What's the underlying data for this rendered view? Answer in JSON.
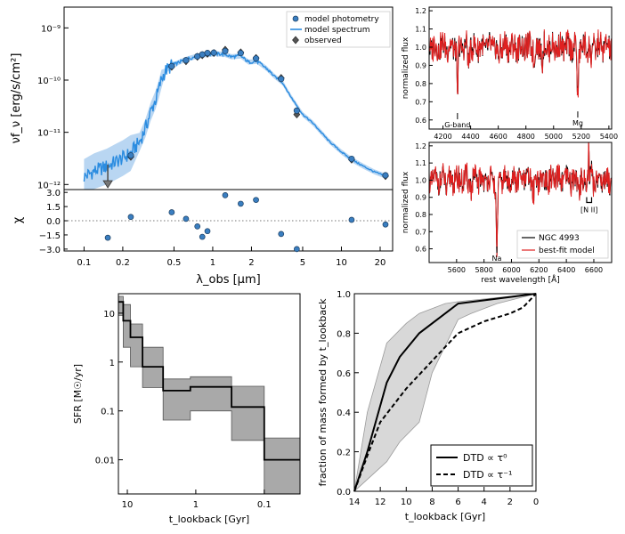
{
  "colors": {
    "photometry": "#3a7ec0",
    "spectrum": "#2b8ce0",
    "observed": "#555555",
    "ngc": "#000000",
    "bestfit": "#e02020",
    "band": "#bdbdbd",
    "step": "#000000"
  },
  "chart_data": [
    {
      "id": "sed",
      "type": "scatter",
      "xlabel": "λ_obs [μm]",
      "ylabel": "νf_ν [erg/s/cm²]",
      "ylabel2": "χ",
      "xlim": [
        0.07,
        25
      ],
      "ylim": [
        8e-13,
        2.5e-09
      ],
      "chi_lim": [
        -3.2,
        3.3
      ],
      "xticks": [
        {
          "v": 0.1,
          "l": "0.1"
        },
        {
          "v": 0.2,
          "l": "0.2"
        },
        {
          "v": 0.5,
          "l": "0.5"
        },
        {
          "v": 1,
          "l": "1"
        },
        {
          "v": 2,
          "l": "2"
        },
        {
          "v": 5,
          "l": "5"
        },
        {
          "v": 10,
          "l": "10"
        },
        {
          "v": 20,
          "l": "20"
        }
      ],
      "yticks": [
        {
          "v": 1e-12,
          "l": "10⁻¹²"
        },
        {
          "v": 1e-11,
          "l": "10⁻¹¹"
        },
        {
          "v": 1e-10,
          "l": "10⁻¹⁰"
        },
        {
          "v": 1e-09,
          "l": "10⁻⁹"
        }
      ],
      "chi_ticks": [
        {
          "v": 3.0,
          "l": "3.0"
        },
        {
          "v": 1.5,
          "l": "1.5"
        },
        {
          "v": 0.0,
          "l": "0.0"
        },
        {
          "v": -1.5,
          "l": "−1.5"
        },
        {
          "v": -3.0,
          "l": "−3.0"
        }
      ],
      "legend": [
        "model photometry",
        "model spectrum",
        "observed"
      ],
      "upper_limit": {
        "x": 0.153,
        "y": 1.1e-12
      },
      "photometry": [
        {
          "x": 0.231,
          "y": 3.6e-12
        },
        {
          "x": 0.48,
          "y": 1.85e-10
        },
        {
          "x": 0.62,
          "y": 2.4e-10
        },
        {
          "x": 0.76,
          "y": 2.85e-10
        },
        {
          "x": 0.83,
          "y": 3.1e-10
        },
        {
          "x": 0.91,
          "y": 3.3e-10
        },
        {
          "x": 1.02,
          "y": 3.35e-10
        },
        {
          "x": 1.25,
          "y": 3.6e-10
        },
        {
          "x": 1.65,
          "y": 3.3e-10
        },
        {
          "x": 2.17,
          "y": 2.6e-10
        },
        {
          "x": 3.4,
          "y": 1.05e-10
        },
        {
          "x": 4.5,
          "y": 2.6e-11
        },
        {
          "x": 12,
          "y": 3.1e-12
        },
        {
          "x": 22,
          "y": 1.5e-12
        }
      ],
      "observed": [
        {
          "x": 0.231,
          "y": 3.4e-12
        },
        {
          "x": 0.48,
          "y": 1.8e-10
        },
        {
          "x": 0.62,
          "y": 2.3e-10
        },
        {
          "x": 0.76,
          "y": 2.8e-10
        },
        {
          "x": 0.83,
          "y": 3e-10
        },
        {
          "x": 0.91,
          "y": 3.2e-10
        },
        {
          "x": 1.02,
          "y": 3.3e-10
        },
        {
          "x": 1.25,
          "y": 3.8e-10
        },
        {
          "x": 1.65,
          "y": 3.4e-10
        },
        {
          "x": 2.17,
          "y": 2.65e-10
        },
        {
          "x": 3.4,
          "y": 1.1e-10
        },
        {
          "x": 4.5,
          "y": 2.2e-11
        },
        {
          "x": 12,
          "y": 3e-12
        },
        {
          "x": 22,
          "y": 1.45e-12
        }
      ],
      "spectrum": [
        {
          "x": 0.1,
          "y": 1.4e-12
        },
        {
          "x": 0.12,
          "y": 1.8e-12
        },
        {
          "x": 0.15,
          "y": 2.2e-12
        },
        {
          "x": 0.18,
          "y": 2.8e-12
        },
        {
          "x": 0.2,
          "y": 3.2e-12
        },
        {
          "x": 0.23,
          "y": 4e-12
        },
        {
          "x": 0.27,
          "y": 6.5e-12
        },
        {
          "x": 0.3,
          "y": 1.2e-11
        },
        {
          "x": 0.33,
          "y": 2.5e-11
        },
        {
          "x": 0.36,
          "y": 4.2e-11
        },
        {
          "x": 0.38,
          "y": 6.5e-11
        },
        {
          "x": 0.4,
          "y": 1.05e-10
        },
        {
          "x": 0.43,
          "y": 1.5e-10
        },
        {
          "x": 0.48,
          "y": 1.9e-10
        },
        {
          "x": 0.55,
          "y": 2.2e-10
        },
        {
          "x": 0.62,
          "y": 2.5e-10
        },
        {
          "x": 0.75,
          "y": 2.85e-10
        },
        {
          "x": 0.9,
          "y": 3.1e-10
        },
        {
          "x": 1.05,
          "y": 3.2e-10
        },
        {
          "x": 1.25,
          "y": 3.1e-10
        },
        {
          "x": 1.4,
          "y": 2.8e-10
        },
        {
          "x": 1.65,
          "y": 2.9e-10
        },
        {
          "x": 1.9,
          "y": 2.2e-10
        },
        {
          "x": 2.2,
          "y": 2.3e-10
        },
        {
          "x": 2.6,
          "y": 1.7e-10
        },
        {
          "x": 3.0,
          "y": 1.2e-10
        },
        {
          "x": 3.5,
          "y": 8.8e-11
        },
        {
          "x": 4.0,
          "y": 5e-11
        },
        {
          "x": 5,
          "y": 2.2e-11
        },
        {
          "x": 6,
          "y": 1.5e-11
        },
        {
          "x": 8,
          "y": 6.8e-12
        },
        {
          "x": 10,
          "y": 4.2e-12
        },
        {
          "x": 12,
          "y": 3e-12
        },
        {
          "x": 15,
          "y": 2.2e-12
        },
        {
          "x": 18,
          "y": 1.75e-12
        },
        {
          "x": 22,
          "y": 1.45e-12
        }
      ],
      "chi": [
        {
          "x": 0.153,
          "y": -1.8
        },
        {
          "x": 0.231,
          "y": 0.4
        },
        {
          "x": 0.48,
          "y": 0.9
        },
        {
          "x": 0.62,
          "y": 0.2
        },
        {
          "x": 0.76,
          "y": -0.6
        },
        {
          "x": 0.83,
          "y": -1.7
        },
        {
          "x": 0.91,
          "y": -1.1
        },
        {
          "x": 1.25,
          "y": 2.7
        },
        {
          "x": 1.65,
          "y": 1.8
        },
        {
          "x": 2.17,
          "y": 2.2
        },
        {
          "x": 3.4,
          "y": -1.4
        },
        {
          "x": 4.5,
          "y": -3.0
        },
        {
          "x": 12,
          "y": 0.1
        },
        {
          "x": 22,
          "y": -0.4
        }
      ]
    },
    {
      "id": "spec_top",
      "type": "line",
      "xlabel": "",
      "ylabel": "normalized flux",
      "xlim": [
        4100,
        5420
      ],
      "ylim": [
        0.55,
        1.22
      ],
      "xticks": [
        4200,
        4400,
        4600,
        4800,
        5000,
        5200,
        5400
      ],
      "yticks": [
        {
          "v": 0.6,
          "l": "0.6"
        },
        {
          "v": 0.7,
          "l": "0.7"
        },
        {
          "v": 0.8,
          "l": "0.8"
        },
        {
          "v": 0.9,
          "l": "0.9"
        },
        {
          "v": 1.0,
          "l": "1.0"
        },
        {
          "v": 1.1,
          "l": "1.1"
        },
        {
          "v": 1.2,
          "l": "1.2"
        }
      ],
      "annotations": [
        {
          "x": 4305,
          "label": "G-band"
        },
        {
          "x": 5175,
          "label": "Mg"
        }
      ],
      "features": [
        {
          "x": 4305,
          "depth": 0.3,
          "width": 6
        },
        {
          "x": 5175,
          "depth": 0.27,
          "width": 7
        },
        {
          "x": 4385,
          "depth": 0.1,
          "width": 6
        },
        {
          "x": 4600,
          "depth": 0.07,
          "width": 8
        },
        {
          "x": 4860,
          "depth": 0.1,
          "width": 6
        },
        {
          "x": 4920,
          "depth": 0.08,
          "width": 6
        },
        {
          "x": 5270,
          "depth": 0.08,
          "width": 6
        }
      ]
    },
    {
      "id": "spec_bot",
      "type": "line",
      "xlabel": "rest wavelength [Å]",
      "ylabel": "normalized flux",
      "xlim": [
        5400,
        6730
      ],
      "ylim": [
        0.52,
        1.22
      ],
      "xticks": [
        5600,
        5800,
        6000,
        6200,
        6400,
        6600
      ],
      "yticks": [
        {
          "v": 0.6,
          "l": "0.6"
        },
        {
          "v": 0.7,
          "l": "0.7"
        },
        {
          "v": 0.8,
          "l": "0.8"
        },
        {
          "v": 0.9,
          "l": "0.9"
        },
        {
          "v": 1.0,
          "l": "1.0"
        },
        {
          "v": 1.1,
          "l": "1.1"
        },
        {
          "v": 1.2,
          "l": "1.2"
        }
      ],
      "annotations": [
        {
          "x": 5893,
          "label": "Na"
        }
      ],
      "nii_label": "[N II]",
      "nii_x": [
        6548,
        6584
      ],
      "features": [
        {
          "x": 5893,
          "depth": 0.42,
          "width": 8
        },
        {
          "x": 5530,
          "depth": 0.06,
          "width": 8
        },
        {
          "x": 5710,
          "depth": 0.05,
          "width": 8
        },
        {
          "x": 6160,
          "depth": 0.06,
          "width": 8
        },
        {
          "x": 6495,
          "depth": 0.07,
          "width": 8
        }
      ],
      "emission": [
        {
          "x": 6563,
          "height": 0.18,
          "width": 4
        },
        {
          "x": 6584,
          "height": 0.06,
          "width": 4
        }
      ],
      "legend": [
        "NGC 4993",
        "best-fit model"
      ]
    },
    {
      "id": "sfr",
      "type": "area",
      "xlabel": "t_lookback [Gyr]",
      "ylabel": "SFR [M☉/yr]",
      "xlim": [
        13.5,
        0.03
      ],
      "ylim": [
        0.002,
        25
      ],
      "xticks": [
        {
          "v": 10,
          "l": "10"
        },
        {
          "v": 1,
          "l": "1"
        },
        {
          "v": 0.1,
          "l": "0.1"
        }
      ],
      "yticks": [
        {
          "v": 10,
          "l": "10"
        },
        {
          "v": 1,
          "l": "1"
        },
        {
          "v": 0.1,
          "l": "0.1"
        },
        {
          "v": 0.01,
          "l": "0.01"
        }
      ],
      "bins": [
        {
          "t1": 13.5,
          "t2": 11.5,
          "v": 17,
          "lo": 9,
          "hi": 22
        },
        {
          "t1": 11.5,
          "t2": 9,
          "v": 7,
          "lo": 2,
          "hi": 15
        },
        {
          "t1": 9,
          "t2": 6,
          "v": 3.2,
          "lo": 0.8,
          "hi": 6
        },
        {
          "t1": 6,
          "t2": 3,
          "v": 0.8,
          "lo": 0.3,
          "hi": 2
        },
        {
          "t1": 3,
          "t2": 1.2,
          "v": 0.26,
          "lo": 0.065,
          "hi": 0.45
        },
        {
          "t1": 1.2,
          "t2": 0.3,
          "v": 0.31,
          "lo": 0.1,
          "hi": 0.5
        },
        {
          "t1": 0.3,
          "t2": 0.1,
          "v": 0.12,
          "lo": 0.025,
          "hi": 0.32
        },
        {
          "t1": 0.1,
          "t2": 0.03,
          "v": 0.01,
          "lo": 0.002,
          "hi": 0.028
        }
      ]
    },
    {
      "id": "massfrac",
      "type": "line",
      "xlabel": "t_lookback [Gyr]",
      "ylabel": "fraction of mass formed by t_lookback",
      "xlim": [
        14,
        0
      ],
      "ylim": [
        0,
        1
      ],
      "xticks": [
        {
          "v": 14,
          "l": "14"
        },
        {
          "v": 12,
          "l": "12"
        },
        {
          "v": 10,
          "l": "10"
        },
        {
          "v": 8,
          "l": "8"
        },
        {
          "v": 6,
          "l": "6"
        },
        {
          "v": 4,
          "l": "4"
        },
        {
          "v": 2,
          "l": "2"
        },
        {
          "v": 0,
          "l": "0"
        }
      ],
      "yticks": [
        {
          "v": 0,
          "l": "0.0"
        },
        {
          "v": 0.2,
          "l": "0.2"
        },
        {
          "v": 0.4,
          "l": "0.4"
        },
        {
          "v": 0.6,
          "l": "0.6"
        },
        {
          "v": 0.8,
          "l": "0.8"
        },
        {
          "v": 1.0,
          "l": "1.0"
        }
      ],
      "band_upper": [
        {
          "x": 14,
          "y": 0
        },
        {
          "x": 13,
          "y": 0.4
        },
        {
          "x": 11.5,
          "y": 0.75
        },
        {
          "x": 10,
          "y": 0.85
        },
        {
          "x": 9,
          "y": 0.9
        },
        {
          "x": 7,
          "y": 0.95
        },
        {
          "x": 6,
          "y": 0.96
        },
        {
          "x": 0,
          "y": 1
        }
      ],
      "band_lower": [
        {
          "x": 0,
          "y": 1
        },
        {
          "x": 3,
          "y": 0.95
        },
        {
          "x": 5,
          "y": 0.9
        },
        {
          "x": 6,
          "y": 0.87
        },
        {
          "x": 8,
          "y": 0.6
        },
        {
          "x": 9,
          "y": 0.35
        },
        {
          "x": 10.5,
          "y": 0.25
        },
        {
          "x": 11.5,
          "y": 0.15
        },
        {
          "x": 14,
          "y": 0
        }
      ],
      "series": [
        {
          "name": "DTD ∝ τ⁰",
          "dash": false,
          "values": [
            {
              "x": 14,
              "y": 0
            },
            {
              "x": 13,
              "y": 0.2
            },
            {
              "x": 11.5,
              "y": 0.55
            },
            {
              "x": 10.5,
              "y": 0.68
            },
            {
              "x": 9,
              "y": 0.8
            },
            {
              "x": 6,
              "y": 0.95
            },
            {
              "x": 0,
              "y": 1
            }
          ]
        },
        {
          "name": "DTD ∝ τ⁻¹",
          "dash": true,
          "values": [
            {
              "x": 14,
              "y": 0
            },
            {
              "x": 13,
              "y": 0.18
            },
            {
              "x": 12,
              "y": 0.35
            },
            {
              "x": 10,
              "y": 0.52
            },
            {
              "x": 8,
              "y": 0.66
            },
            {
              "x": 6,
              "y": 0.8
            },
            {
              "x": 4,
              "y": 0.86
            },
            {
              "x": 2,
              "y": 0.9
            },
            {
              "x": 1,
              "y": 0.93
            },
            {
              "x": 0,
              "y": 1
            }
          ]
        }
      ]
    }
  ]
}
